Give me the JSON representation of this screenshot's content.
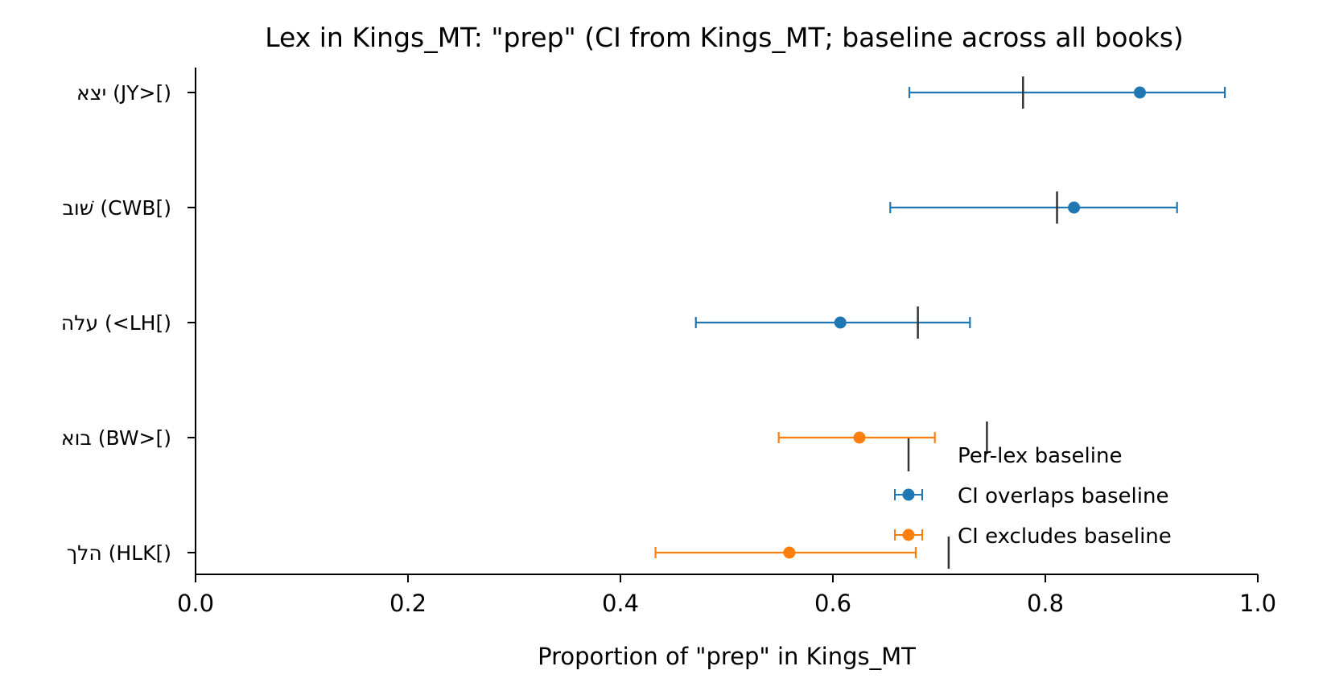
{
  "chart_data": {
    "type": "scatter",
    "title": "Lex in Kings_MT: \"prep\" (CI from Kings_MT; baseline across all books)",
    "xlabel": "Proportion of \"prep\" in Kings_MT",
    "ylabel": "",
    "xlim": [
      0.0,
      1.0
    ],
    "xticks": [
      "0.0",
      "0.2",
      "0.4",
      "0.6",
      "0.8",
      "1.0"
    ],
    "grid": false,
    "legend_position": "lower-right",
    "categories": [
      "יצא (JY>[)",
      "שׁוב (CWB[)",
      "עלה (<LH[)",
      "בוא (BW>[)",
      "הלך (HLK[)"
    ],
    "points": [
      {
        "label": "יצא (JY>[)",
        "estimate": 0.889,
        "ci_low": 0.672,
        "ci_high": 0.969,
        "baseline": 0.779,
        "group": "overlaps"
      },
      {
        "label": "שׁוב (CWB[)",
        "estimate": 0.827,
        "ci_low": 0.654,
        "ci_high": 0.924,
        "baseline": 0.811,
        "group": "overlaps"
      },
      {
        "label": "עלה (<LH[)",
        "estimate": 0.607,
        "ci_low": 0.471,
        "ci_high": 0.729,
        "baseline": 0.68,
        "group": "overlaps"
      },
      {
        "label": "בוא (BW>[)",
        "estimate": 0.625,
        "ci_low": 0.549,
        "ci_high": 0.696,
        "baseline": 0.745,
        "group": "excludes"
      },
      {
        "label": "הלך (HLK[)",
        "estimate": 0.559,
        "ci_low": 0.433,
        "ci_high": 0.678,
        "baseline": 0.709,
        "group": "excludes"
      }
    ],
    "legend": {
      "baseline": "Per-lex baseline",
      "overlaps": "CI overlaps baseline",
      "excludes": "CI excludes baseline"
    },
    "colors": {
      "overlaps": "#1f77b4",
      "excludes": "#ff7f0e",
      "baseline": "#333333",
      "axis": "#000000"
    }
  }
}
